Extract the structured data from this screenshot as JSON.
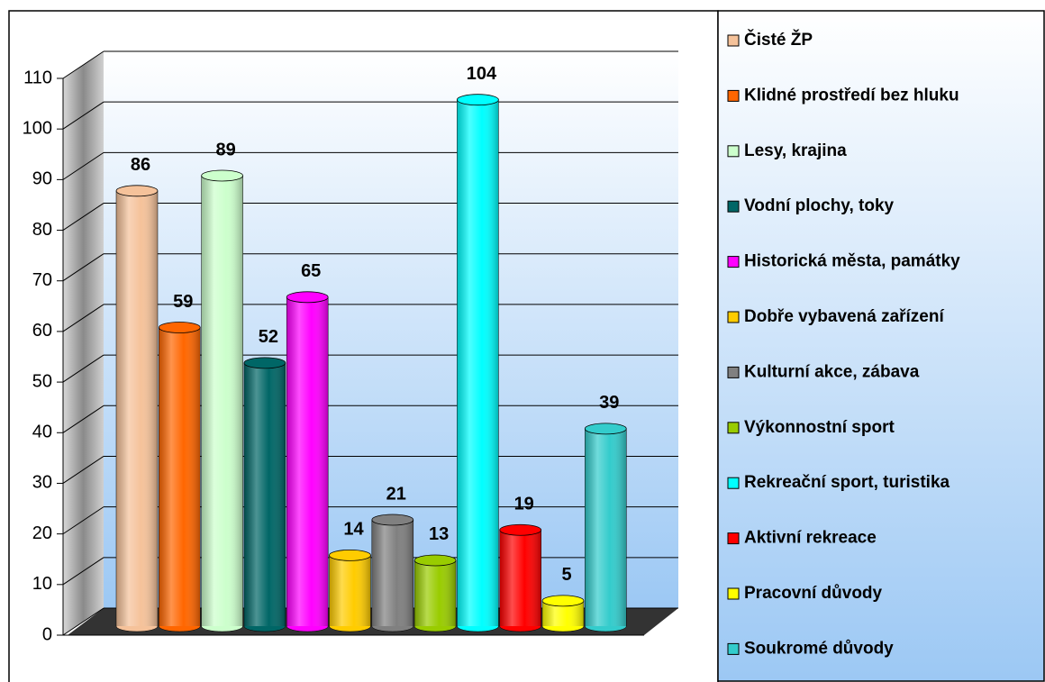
{
  "chart_data": {
    "type": "bar",
    "categories": [
      "Čisté ŽP",
      "Klidné prostředí bez hluku",
      "Lesy, krajina",
      "Vodní plochy, toky",
      "Historická města, památky",
      "Dobře vybavená zařízení",
      "Kulturní akce, zábava",
      "Výkonnostní sport",
      "Rekreační sport, turistika",
      "Aktivní rekreace",
      "Pracovní důvody",
      "Soukromé důvody"
    ],
    "values": [
      86,
      59,
      89,
      52,
      65,
      14,
      21,
      13,
      104,
      19,
      5,
      39
    ],
    "colors": [
      "#f5c29a",
      "#ff6600",
      "#ccffcc",
      "#006666",
      "#ff00ff",
      "#ffcc00",
      "#808080",
      "#99cc00",
      "#00ffff",
      "#ff0000",
      "#ffff00",
      "#33cccc"
    ],
    "ylim": [
      0,
      110
    ],
    "yticks": [
      0,
      10,
      20,
      30,
      40,
      50,
      60,
      70,
      80,
      90,
      100,
      110
    ],
    "grid": true,
    "legend": "right"
  }
}
